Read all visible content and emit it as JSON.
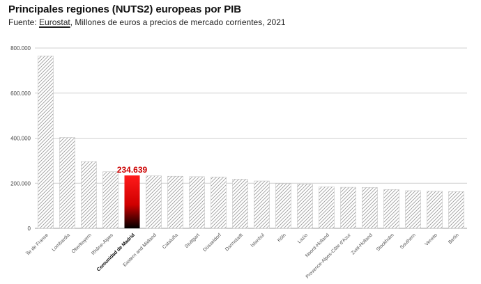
{
  "title": "Principales regiones (NUTS2) europeas por PIB",
  "subtitle": {
    "prefix": "Fuente: ",
    "source": "Eurostat",
    "suffix": ", Millones de euros a precios de mercado corrientes, 2021"
  },
  "colors": {
    "highlight_top": "#ff1a1a",
    "highlight_bottom": "#000000",
    "highlight_label": "#cc0000",
    "bar_hatch": "#9a9a9a",
    "grid": "#d0d0d0"
  },
  "chart_data": {
    "type": "bar",
    "title": "Principales regiones (NUTS2) europeas por PIB",
    "xlabel": "",
    "ylabel": "",
    "ylim": [
      0,
      800000
    ],
    "yticks": [
      0,
      200000,
      400000,
      600000,
      800000
    ],
    "ytick_labels": [
      "0",
      "200.000",
      "400.000",
      "600.000",
      "800.000"
    ],
    "grid": true,
    "categories": [
      "Île de France",
      "Lombardia",
      "Oberbayern",
      "Rhône-Alpes",
      "Comunidad de Madrid",
      "Eastern and Midland",
      "Cataluña",
      "Stuttgart",
      "Düsseldorf",
      "Darmstadt",
      "Istanbul",
      "Köln",
      "Lazio",
      "Noord-Holland",
      "Provence-Alpes-Côte d'Azur",
      "Zuid-Holland",
      "Stockholm",
      "Southern",
      "Veneto",
      "Berlin"
    ],
    "values": [
      765000,
      403000,
      296000,
      251000,
      234639,
      233000,
      231000,
      229000,
      228000,
      218000,
      210000,
      199000,
      197000,
      184000,
      182000,
      181000,
      172000,
      167000,
      165000,
      163000
    ],
    "highlight_index": 4,
    "highlight_label": "234.639"
  }
}
